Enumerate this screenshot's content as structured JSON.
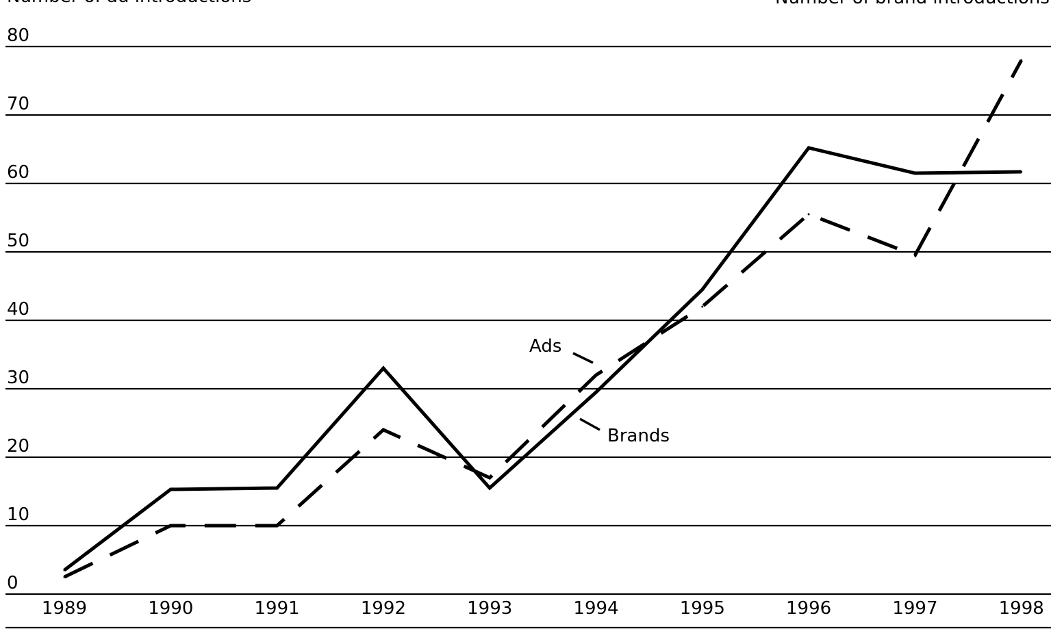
{
  "chart_data": {
    "type": "line",
    "title": "",
    "ylabel_left": "Number of ad introductions",
    "ylabel_right": "Number of brand introductions",
    "xlabel": "",
    "x": [
      "1989",
      "1990",
      "1991",
      "1992",
      "1993",
      "1994",
      "1995",
      "1996",
      "1997",
      "1998"
    ],
    "yticks": [
      "0",
      "10",
      "20",
      "30",
      "40",
      "50",
      "60",
      "70",
      "80"
    ],
    "ylim": [
      0,
      80
    ],
    "grid": "horizontal",
    "legend": "none",
    "series": [
      {
        "name": "Ads",
        "style": "dashed",
        "color": "#000000",
        "values": [
          2.5,
          10,
          10,
          24,
          17,
          32,
          42,
          55.5,
          49.5,
          78
        ]
      },
      {
        "name": "Brands",
        "style": "solid",
        "color": "#000000",
        "values": [
          3.5,
          15.3,
          15.5,
          33,
          15.5,
          29.5,
          44.5,
          65.2,
          61.5,
          61.7
        ]
      }
    ],
    "annotations": [
      {
        "text": "Ads",
        "series": "Ads"
      },
      {
        "text": "Brands",
        "series": "Brands"
      }
    ]
  }
}
